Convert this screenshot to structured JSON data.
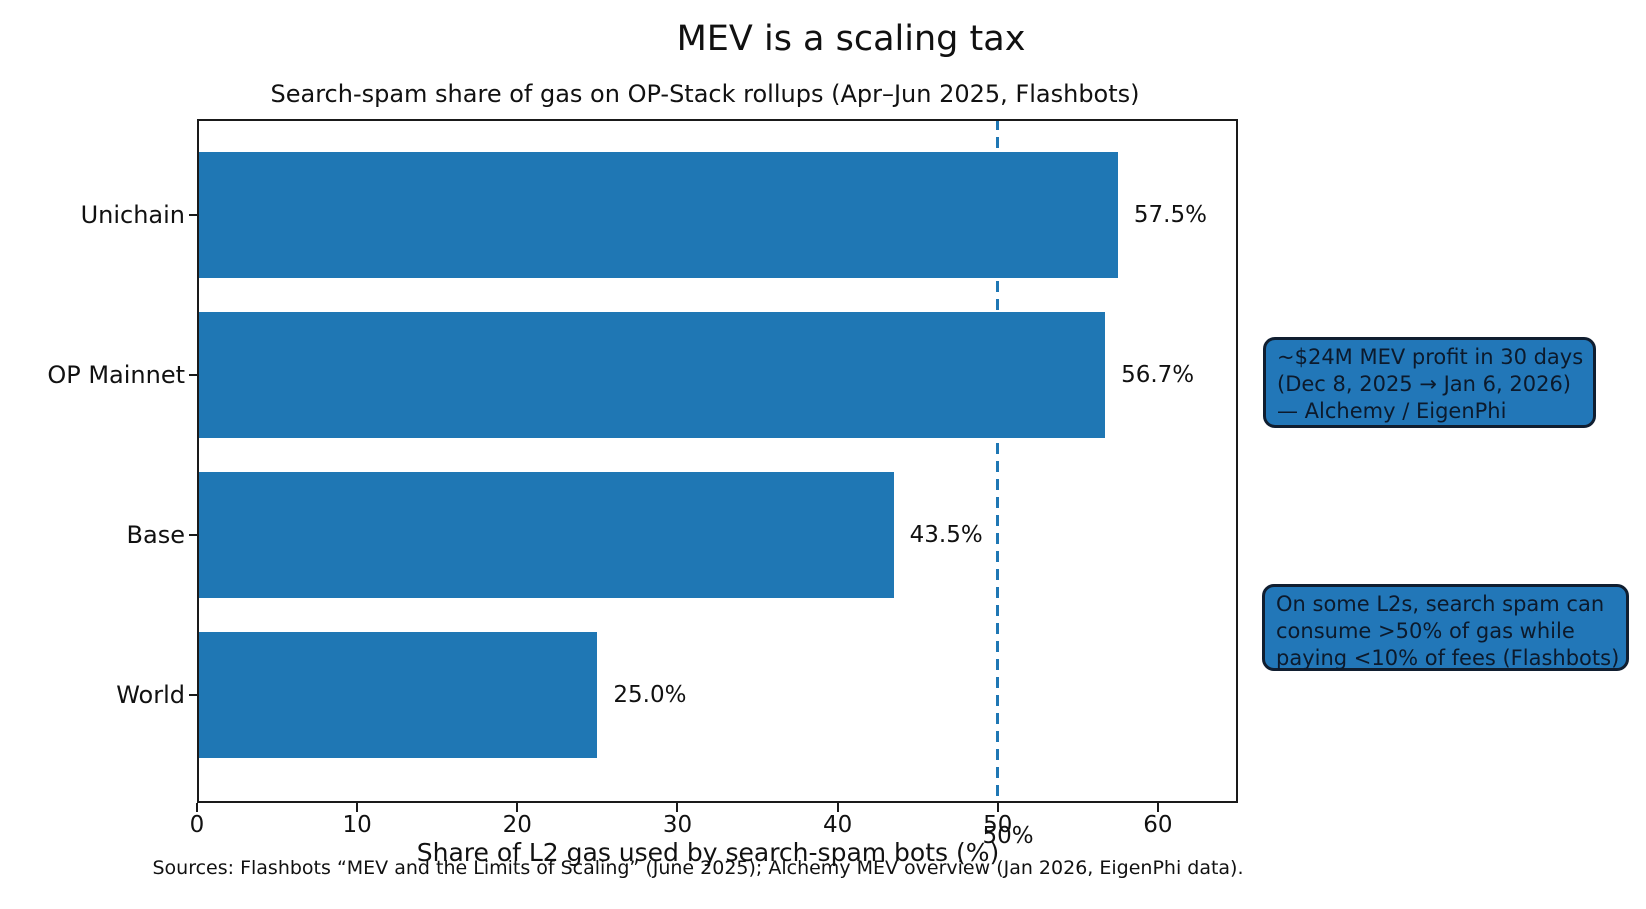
{
  "chart_data": {
    "type": "bar",
    "orientation": "horizontal",
    "title": "MEV is a scaling tax",
    "subtitle": "Search-spam share of gas on OP-Stack rollups (Apr–Jun 2025, Flashbots)",
    "categories": [
      "Unichain",
      "OP Mainnet",
      "Base",
      "World"
    ],
    "values": [
      57.5,
      56.7,
      43.5,
      25.0
    ],
    "value_labels": [
      "57.5%",
      "56.7%",
      "43.5%",
      "25.0%"
    ],
    "xlabel": "Share of L2 gas used by search-spam bots (%)",
    "ylabel": "",
    "xlim": [
      0,
      65
    ],
    "xticks": [
      0,
      10,
      20,
      30,
      40,
      50,
      60
    ],
    "grid": false,
    "legend": "none",
    "bar_color": "#1f77b4",
    "reference_line": {
      "x": 50,
      "label": "50%",
      "style": "dashed",
      "color": "#1f77b4"
    },
    "annotations": [
      {
        "id": "mev-profit",
        "lines": [
          "~$24M MEV profit in 30 days",
          "(Dec 8, 2025 → Jan 6, 2026)",
          "— Alchemy / EigenPhi"
        ],
        "fill": "#2277b8",
        "border": "#101e30"
      },
      {
        "id": "spam-share",
        "lines": [
          "On some L2s, search spam can",
          "consume >50% of gas while",
          "paying <10% of fees (Flashbots)"
        ],
        "fill": "#2277b8",
        "border": "#101e30"
      }
    ],
    "footnote": "Sources: Flashbots “MEV and the Limits of Scaling” (June 2025); Alchemy MEV overview (Jan 2026, EigenPhi data)."
  },
  "colors": {
    "bar": "#1f77b4",
    "annotation_fill": "#2277b8",
    "annotation_border": "#101e30",
    "axis": "#1a1a1a",
    "text": "#111111"
  }
}
